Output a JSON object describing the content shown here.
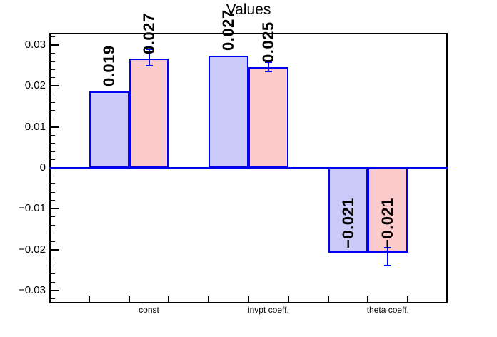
{
  "chart_data": {
    "type": "bar",
    "title": "Values",
    "categories": [
      "const",
      "invpt coeff.",
      "theta coeff."
    ],
    "n_bins": 10,
    "category_bins": [
      3,
      6,
      9
    ],
    "series": [
      {
        "name": "blue",
        "fill": "#cbcbf9",
        "border": "#0202f0",
        "bins": [
          2,
          5,
          8
        ],
        "values": [
          0.0187,
          0.0274,
          -0.0208
        ],
        "labels": [
          "0.019",
          "0.027",
          "−0.021"
        ]
      },
      {
        "name": "pink",
        "fill": "#fccbcb",
        "border": "#0202f0",
        "bins": [
          3,
          6,
          9
        ],
        "values": [
          0.0267,
          0.0246,
          -0.0208
        ],
        "labels": [
          "0.027",
          "0.025",
          "−0.021"
        ],
        "errors": [
          {
            "low": 0.025,
            "high": 0.029
          },
          {
            "low": 0.0236,
            "high": 0.0258
          },
          {
            "low": -0.0239,
            "high": -0.0196
          }
        ]
      }
    ],
    "y_axis": {
      "majors": [
        {
          "value": 0.03,
          "label": "0.03"
        },
        {
          "value": 0.02,
          "label": "0.02"
        },
        {
          "value": 0.01,
          "label": "0.01"
        },
        {
          "value": 0,
          "label": "0"
        },
        {
          "value": -0.01,
          "label": "−0.01"
        },
        {
          "value": -0.02,
          "label": "−0.02"
        },
        {
          "value": -0.03,
          "label": "−0.03"
        }
      ],
      "minor_step": 0.002,
      "range": [
        -0.0332,
        0.0332
      ]
    },
    "x_axis": {
      "tick_bins": [
        1,
        2,
        3,
        4,
        5,
        6,
        7,
        8,
        9
      ]
    },
    "baseline_color": "#0202f0",
    "grid": false,
    "legend_position": "none"
  }
}
